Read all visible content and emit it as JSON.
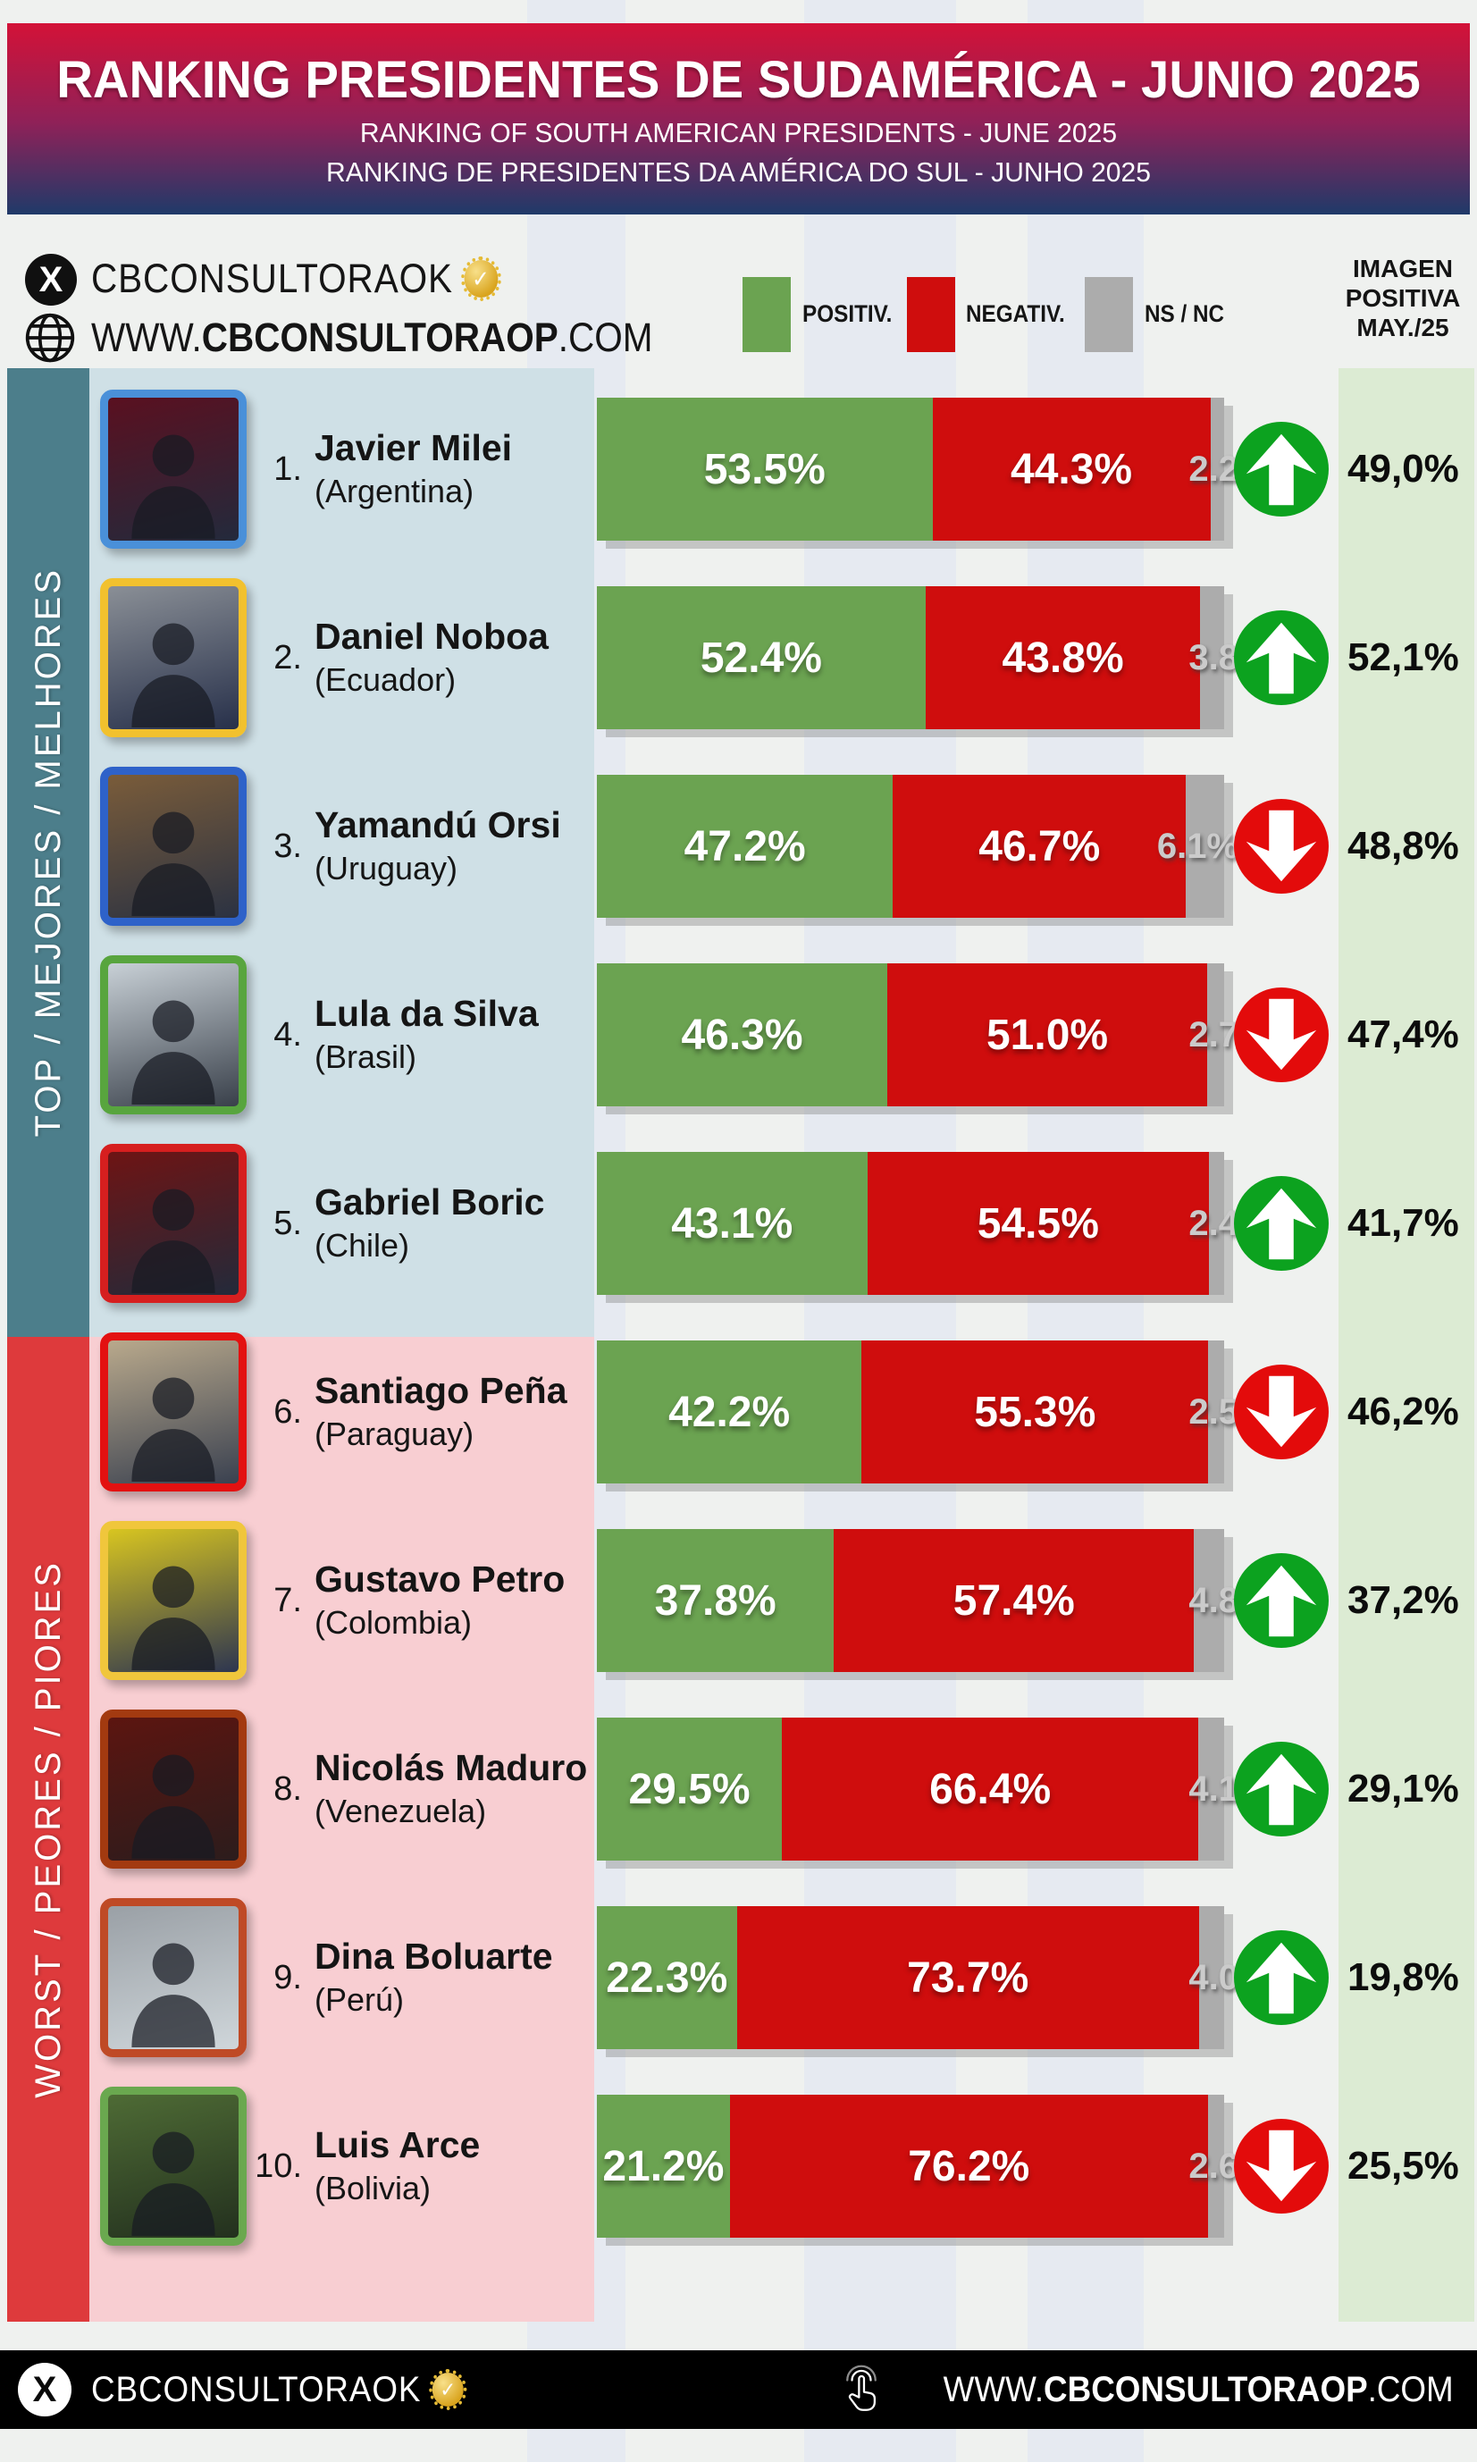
{
  "header": {
    "title": "RANKING PRESIDENTES DE SUDAMÉRICA - JUNIO 2025",
    "subtitle_en": "RANKING OF SOUTH AMERICAN PRESIDENTS -  JUNE 2025",
    "subtitle_pt": "RANKING DE PRESIDENTES DA AMÉRICA DO SUL - JUNHO 2025"
  },
  "source": {
    "x_logo": "X",
    "handle": "CBCONSULTORAOK",
    "verified_check": "✓",
    "website_prefix": "WWW.",
    "website_bold": "CBCONSULTORAOP",
    "website_suffix": ".COM"
  },
  "legend": {
    "positive": "POSITIV.",
    "negative": "NEGATIV.",
    "ns_nc": "NS / NC"
  },
  "image_col_header": {
    "line1": "IMAGEN",
    "line2": "POSITIVA",
    "line3": "MAY./25"
  },
  "groups": {
    "top_label": "TOP / MEJORES / MELHORES",
    "worst_label": "WORST / PEORES / PIORES"
  },
  "rows": [
    {
      "rank": "1.",
      "name": "Javier Milei",
      "country": "(Argentina)",
      "positive_value": 53.5,
      "negative_value": 44.3,
      "ns_value": 2.2,
      "positive_label": "53.5%",
      "negative_label": "44.3%",
      "ns_label": "2.2",
      "trend": "up",
      "prev_label": "49,0%",
      "photo": {
        "border": "#4a90d9",
        "bg1": "#5a1020",
        "bg2": "#232a3c"
      }
    },
    {
      "rank": "2.",
      "name": "Daniel Noboa",
      "country": "(Ecuador)",
      "positive_value": 52.4,
      "negative_value": 43.8,
      "ns_value": 3.8,
      "positive_label": "52.4%",
      "negative_label": "43.8%",
      "ns_label": "3.8",
      "trend": "up",
      "prev_label": "52,1%",
      "photo": {
        "border": "#f2c12e",
        "bg1": "#8a8f96",
        "bg2": "#27304a"
      }
    },
    {
      "rank": "3.",
      "name": "Yamandú Orsi",
      "country": "(Uruguay)",
      "positive_value": 47.2,
      "negative_value": 46.7,
      "ns_value": 6.1,
      "positive_label": "47.2%",
      "negative_label": "46.7%",
      "ns_label": "6.1%",
      "trend": "down",
      "prev_label": "48,8%",
      "photo": {
        "border": "#2e62c9",
        "bg1": "#7a5c3a",
        "bg2": "#2b3242"
      }
    },
    {
      "rank": "4.",
      "name": "Lula da Silva",
      "country": "(Brasil)",
      "positive_value": 46.3,
      "negative_value": 51.0,
      "ns_value": 2.7,
      "positive_label": "46.3%",
      "negative_label": "51.0%",
      "ns_label": "2.7",
      "trend": "down",
      "prev_label": "47,4%",
      "photo": {
        "border": "#58a53e",
        "bg1": "#c8d0d6",
        "bg2": "#39404a"
      }
    },
    {
      "rank": "5.",
      "name": "Gabriel Boric",
      "country": "(Chile)",
      "positive_value": 43.1,
      "negative_value": 54.5,
      "ns_value": 2.4,
      "positive_label": "43.1%",
      "negative_label": "54.5%",
      "ns_label": "2.4",
      "trend": "up",
      "prev_label": "41,7%",
      "photo": {
        "border": "#d61f1f",
        "bg1": "#6e1414",
        "bg2": "#232a3a"
      }
    },
    {
      "rank": "6.",
      "name": "Santiago Peña",
      "country": "(Paraguay)",
      "positive_value": 42.2,
      "negative_value": 55.3,
      "ns_value": 2.5,
      "positive_label": "42.2%",
      "negative_label": "55.3%",
      "ns_label": "2.5",
      "trend": "down",
      "prev_label": "46,2%",
      "photo": {
        "border": "#e31111",
        "bg1": "#b9a98c",
        "bg2": "#3a4150"
      }
    },
    {
      "rank": "7.",
      "name": "Gustavo Petro",
      "country": "(Colombia)",
      "positive_value": 37.8,
      "negative_value": 57.4,
      "ns_value": 4.8,
      "positive_label": "37.8%",
      "negative_label": "57.4%",
      "ns_label": "4.8",
      "trend": "up",
      "prev_label": "37,2%",
      "photo": {
        "border": "#f0c63c",
        "bg1": "#d8c520",
        "bg2": "#2d3550"
      }
    },
    {
      "rank": "8.",
      "name": "Nicolás Maduro",
      "country": "(Venezuela)",
      "positive_value": 29.5,
      "negative_value": 66.4,
      "ns_value": 4.1,
      "positive_label": "29.5%",
      "negative_label": "66.4%",
      "ns_label": "4.1",
      "trend": "up",
      "prev_label": "29,1%",
      "photo": {
        "border": "#a33a10",
        "bg1": "#5c1510",
        "bg2": "#2c1c1c"
      }
    },
    {
      "rank": "9.",
      "name": "Dina Boluarte",
      "country": "(Perú)",
      "positive_value": 22.3,
      "negative_value": 73.7,
      "ns_value": 4.0,
      "positive_label": "22.3%",
      "negative_label": "73.7%",
      "ns_label": "4.0",
      "trend": "up",
      "prev_label": "19,8%",
      "photo": {
        "border": "#bf4a26",
        "bg1": "#9aa0a6",
        "bg2": "#cfd6da"
      }
    },
    {
      "rank": "10.",
      "name": "Luis Arce",
      "country": "(Bolivia)",
      "positive_value": 21.2,
      "negative_value": 76.2,
      "ns_value": 2.6,
      "positive_label": "21.2%",
      "negative_label": "76.2%",
      "ns_label": "2.6",
      "trend": "down",
      "prev_label": "25,5%",
      "photo": {
        "border": "#6aa84f",
        "bg1": "#4e6b35",
        "bg2": "#23301e"
      }
    }
  ],
  "chart_data": {
    "type": "bar",
    "subtype": "stacked-horizontal",
    "title": "RANKING PRESIDENTES DE SUDAMÉRICA - JUNIO 2025",
    "categories": [
      "Javier Milei (Argentina)",
      "Daniel Noboa (Ecuador)",
      "Yamandú Orsi (Uruguay)",
      "Lula da Silva (Brasil)",
      "Gabriel Boric (Chile)",
      "Santiago Peña (Paraguay)",
      "Gustavo Petro (Colombia)",
      "Nicolás Maduro (Venezuela)",
      "Dina Boluarte (Perú)",
      "Luis Arce (Bolivia)"
    ],
    "series": [
      {
        "name": "POSITIV.",
        "values": [
          53.5,
          52.4,
          47.2,
          46.3,
          43.1,
          42.2,
          37.8,
          29.5,
          22.3,
          21.2
        ]
      },
      {
        "name": "NEGATIV.",
        "values": [
          44.3,
          43.8,
          46.7,
          51.0,
          54.5,
          55.3,
          57.4,
          66.4,
          73.7,
          76.2
        ]
      },
      {
        "name": "NS / NC",
        "values": [
          2.2,
          3.8,
          6.1,
          2.7,
          2.4,
          2.5,
          4.8,
          4.1,
          4.0,
          2.6
        ]
      }
    ],
    "extra_columns": [
      {
        "name": "IMAGEN POSITIVA MAY./25",
        "values": [
          49.0,
          52.1,
          48.8,
          47.4,
          41.7,
          46.2,
          37.2,
          29.1,
          19.8,
          25.5
        ]
      },
      {
        "name": "trend_vs_previous",
        "values": [
          "up",
          "up",
          "down",
          "down",
          "up",
          "down",
          "up",
          "up",
          "up",
          "down"
        ]
      }
    ],
    "xlim": [
      0,
      100
    ],
    "legend_position": "top",
    "grid": false
  },
  "footer": {
    "x_logo": "X",
    "handle": "CBCONSULTORAOK",
    "verified_check": "✓",
    "website_prefix": "WWW.",
    "website_bold": "CBCONSULTORAOP",
    "website_suffix": ".COM"
  },
  "colors": {
    "bar_green": "#6ba351",
    "bar_red": "#cf0d0d",
    "bar_gray": "#acacac",
    "arrow_up": "#0ca21f",
    "arrow_down": "#e30b0b",
    "sidebar_top": "#4c7e8b",
    "sidebar_bottom": "#de3a3c",
    "panel_top": "#cfe0e6",
    "panel_bottom": "#f8ced2",
    "image_col_bg": "#dcebd3",
    "header_top": "#d31238",
    "header_mid": "#8f2158",
    "header_bottom": "#1f3a69",
    "footer_bg": "#000000",
    "badge_gold": "#d9a41e"
  }
}
